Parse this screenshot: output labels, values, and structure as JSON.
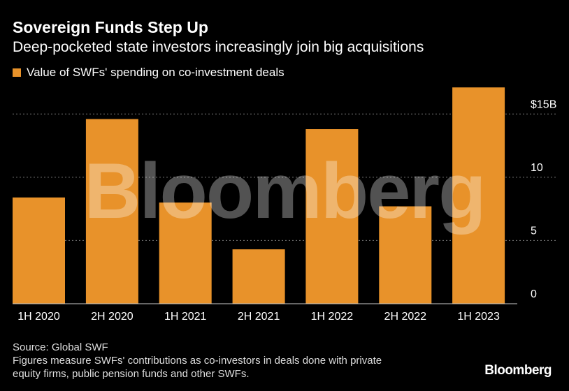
{
  "title": "Sovereign Funds Step Up",
  "subtitle": "Deep-pocketed state investors increasingly join big acquisitions",
  "legend_label": "Value of SWFs' spending on co-investment deals",
  "watermark": "Bloomberg",
  "source": "Source: Global SWF",
  "note_line1": "Figures measure SWFs' contributions as co-investors in deals done with private",
  "note_line2": "equity firms, public pension funds and other SWFs.",
  "brand": "Bloomberg",
  "colors": {
    "bar": "#e8922a",
    "background": "#000000",
    "grid": "#777777"
  },
  "chart_data": {
    "type": "bar",
    "title": "Sovereign Funds Step Up",
    "categories": [
      "1H 2020",
      "2H 2020",
      "1H 2021",
      "2H 2021",
      "1H 2022",
      "2H 2022",
      "1H 2023"
    ],
    "series": [
      {
        "name": "Value of SWFs' spending on co-investment deals",
        "values": [
          8.4,
          14.6,
          8.0,
          4.3,
          13.8,
          7.7,
          17.1
        ]
      }
    ],
    "yticks": [
      0,
      5,
      10,
      15
    ],
    "ytick_labels": [
      "0",
      "5",
      "10",
      "$15B"
    ],
    "ylim": [
      0,
      17.5
    ],
    "xlabel": "",
    "ylabel": ""
  }
}
